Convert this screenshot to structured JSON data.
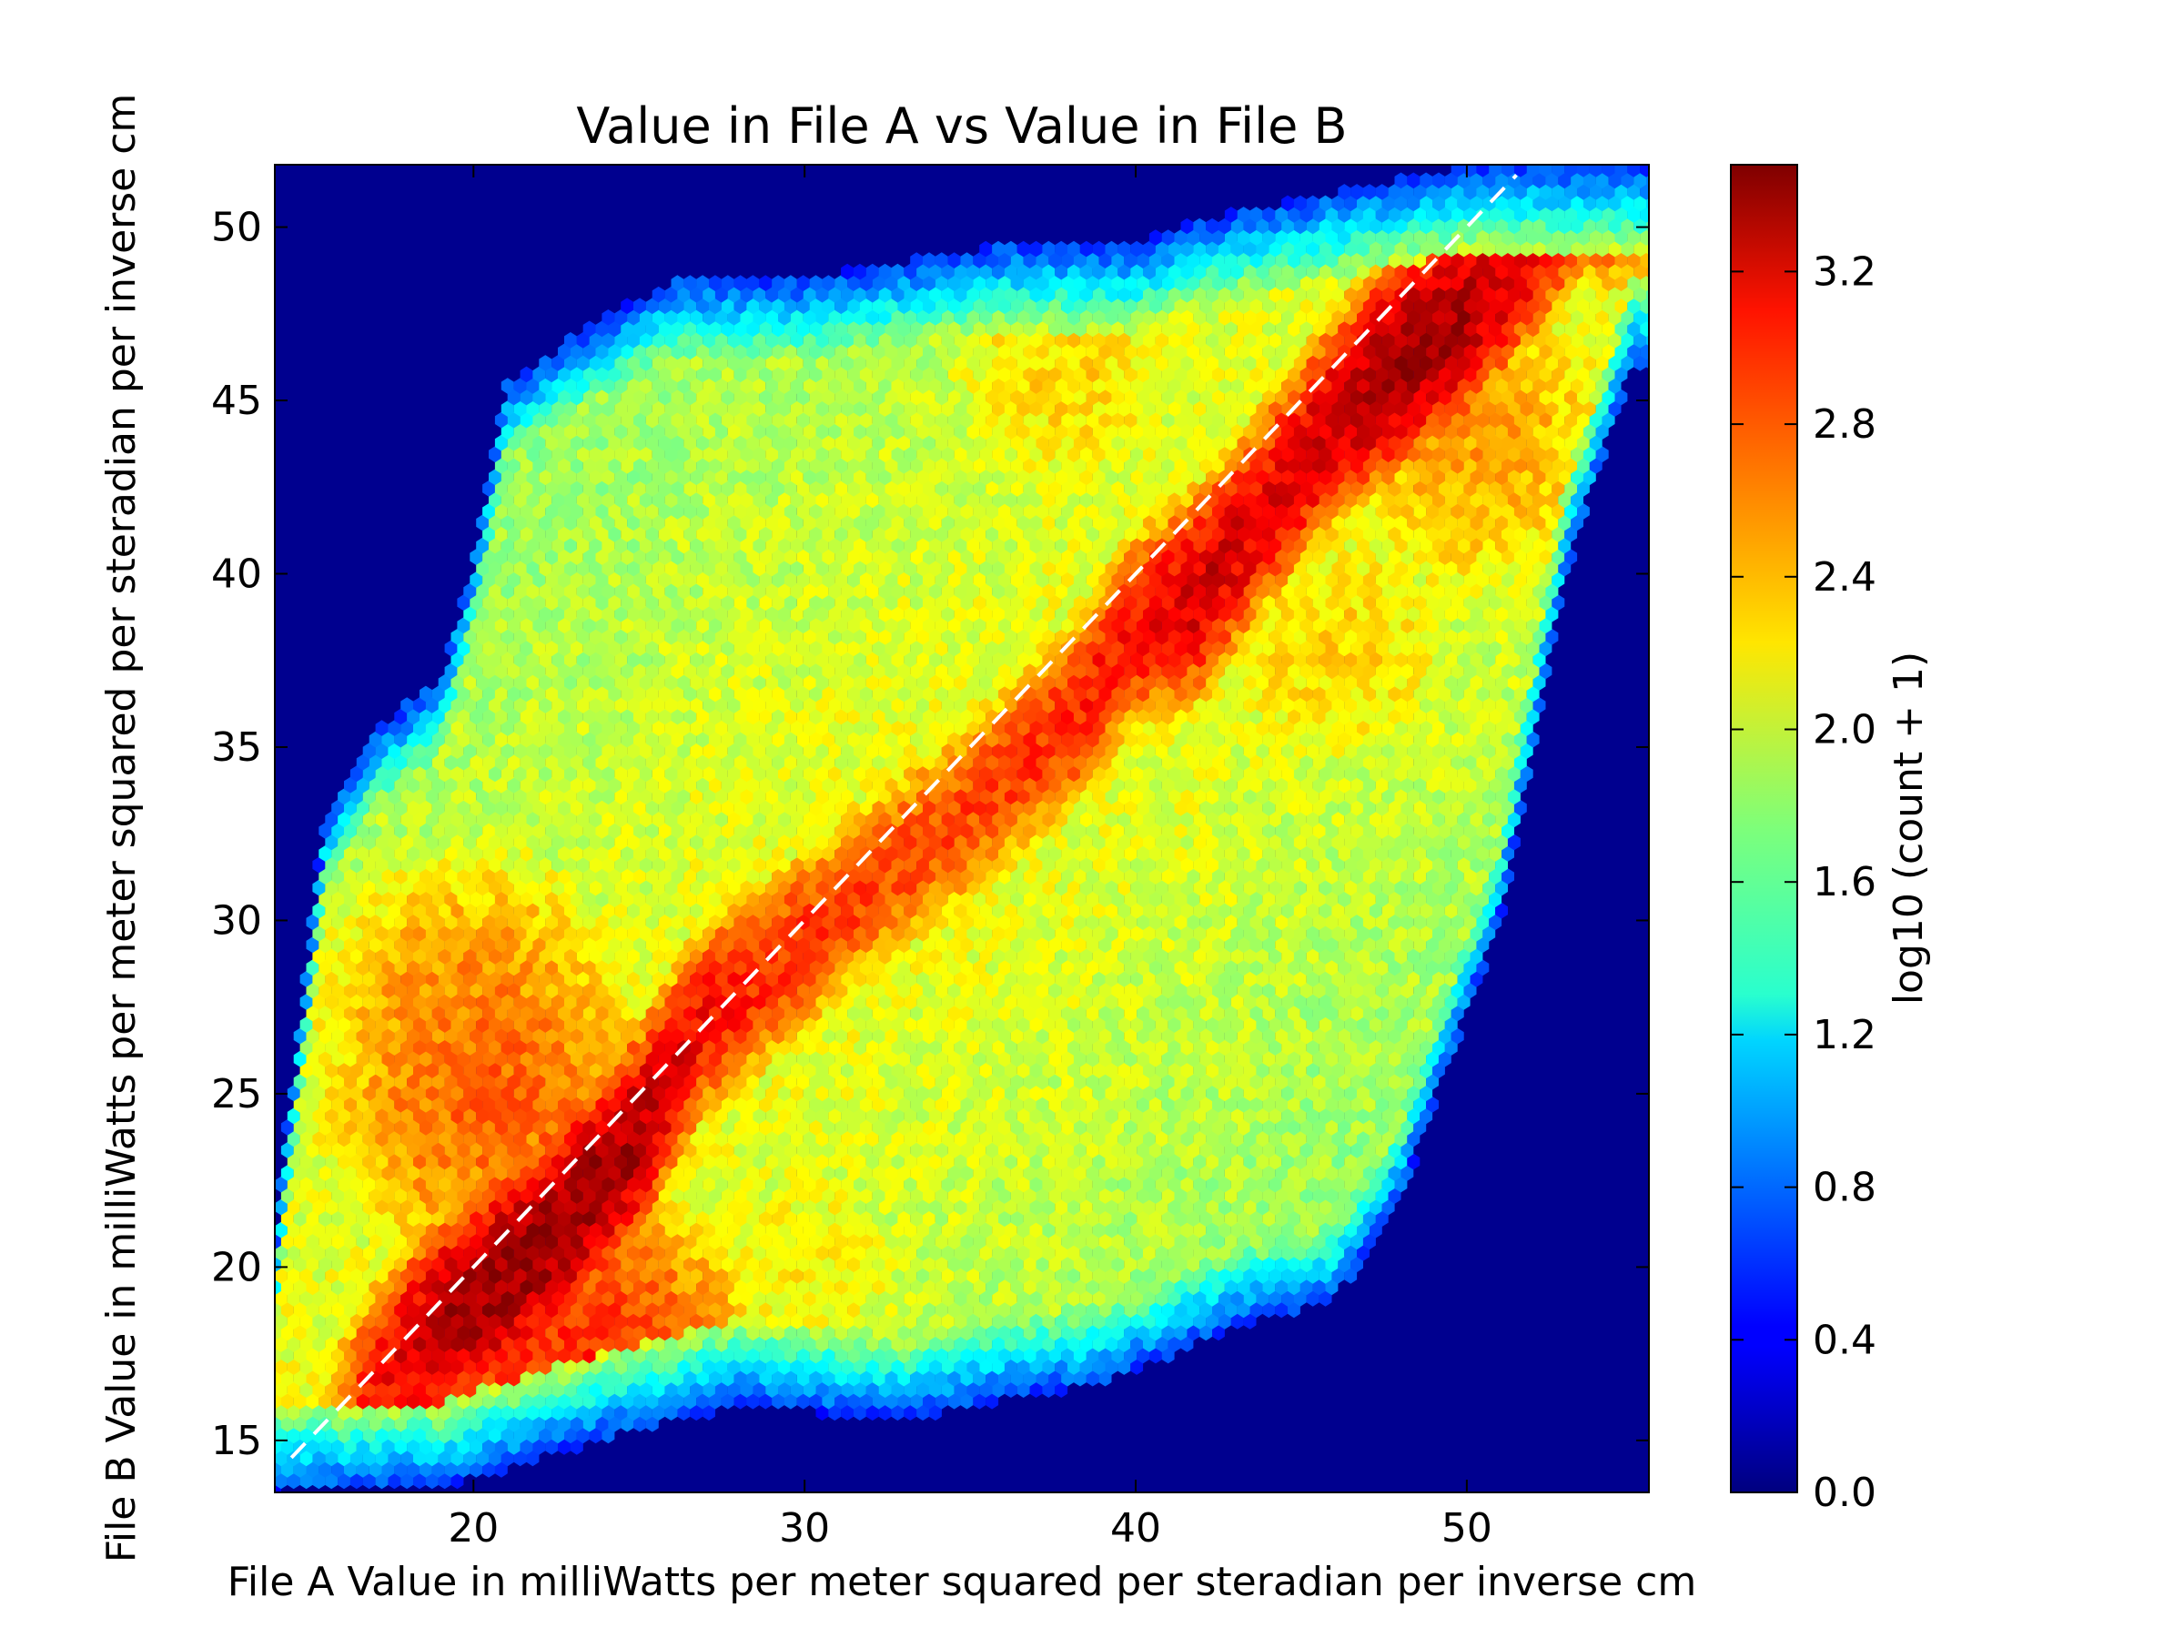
{
  "chart_data": {
    "type": "heatmap",
    "subtype": "hexbin",
    "title": "Value in File A vs Value in File B",
    "xlabel": "File A Value in milliWatts per meter squared per steradian per inverse cm",
    "ylabel": "File B Value in milliWatts per meter squared per steradian per inverse cm",
    "xlim": [
      14,
      55.5
    ],
    "ylim": [
      13.5,
      51.8
    ],
    "xticks": [
      20,
      30,
      40,
      50
    ],
    "yticks": [
      15,
      20,
      25,
      30,
      35,
      40,
      45,
      50
    ],
    "colorbar": {
      "label": "log10 (count + 1)",
      "range": [
        0.0,
        3.48
      ],
      "ticks": [
        "0.0",
        "0.4",
        "0.8",
        "1.2",
        "1.6",
        "2.0",
        "2.4",
        "2.8",
        "3.2"
      ],
      "colormap": "jet"
    },
    "reference_line": {
      "style": "dashed",
      "color": "#ffffff",
      "x": [
        14.5,
        51.5
      ],
      "y": [
        14.5,
        51.5
      ]
    },
    "background_color": "#00008f",
    "ridge": [
      {
        "x": 15.0,
        "y": 15.0,
        "value": 2.2
      },
      {
        "x": 17.0,
        "y": 16.8,
        "value": 3.0
      },
      {
        "x": 19.0,
        "y": 18.4,
        "value": 3.3
      },
      {
        "x": 21.0,
        "y": 19.8,
        "value": 3.4
      },
      {
        "x": 23.0,
        "y": 21.6,
        "value": 3.4
      },
      {
        "x": 25.0,
        "y": 23.8,
        "value": 3.3
      },
      {
        "x": 27.0,
        "y": 27.2,
        "value": 3.0
      },
      {
        "x": 29.0,
        "y": 28.6,
        "value": 2.9
      },
      {
        "x": 32.0,
        "y": 31.0,
        "value": 2.8
      },
      {
        "x": 35.0,
        "y": 33.2,
        "value": 2.8
      },
      {
        "x": 38.0,
        "y": 35.8,
        "value": 2.9
      },
      {
        "x": 40.0,
        "y": 38.4,
        "value": 3.0
      },
      {
        "x": 42.0,
        "y": 39.5,
        "value": 3.2
      },
      {
        "x": 44.0,
        "y": 42.0,
        "value": 3.1
      },
      {
        "x": 46.0,
        "y": 44.5,
        "value": 3.2
      },
      {
        "x": 48.0,
        "y": 46.2,
        "value": 3.4
      },
      {
        "x": 50.0,
        "y": 47.5,
        "value": 3.3
      },
      {
        "x": 52.0,
        "y": 49.5,
        "value": 3.1
      },
      {
        "x": 53.5,
        "y": 51.0,
        "value": 2.9
      }
    ],
    "density_regions": [
      {
        "x": 20.0,
        "y": 27.0,
        "value": 2.6
      },
      {
        "x": 20.5,
        "y": 25.0,
        "value": 2.7
      },
      {
        "x": 23.0,
        "y": 17.0,
        "value": 2.9
      },
      {
        "x": 30.0,
        "y": 20.0,
        "value": 2.2
      },
      {
        "x": 35.0,
        "y": 25.0,
        "value": 2.0
      },
      {
        "x": 40.0,
        "y": 30.0,
        "value": 1.8
      },
      {
        "x": 25.0,
        "y": 35.0,
        "value": 1.9
      },
      {
        "x": 32.0,
        "y": 40.0,
        "value": 1.9
      },
      {
        "x": 38.0,
        "y": 46.0,
        "value": 2.3
      },
      {
        "x": 46.0,
        "y": 38.0,
        "value": 2.3
      },
      {
        "x": 50.0,
        "y": 44.0,
        "value": 2.5
      },
      {
        "x": 18.0,
        "y": 33.0,
        "value": 1.3
      },
      {
        "x": 46.0,
        "y": 26.0,
        "value": 0.8
      }
    ]
  }
}
